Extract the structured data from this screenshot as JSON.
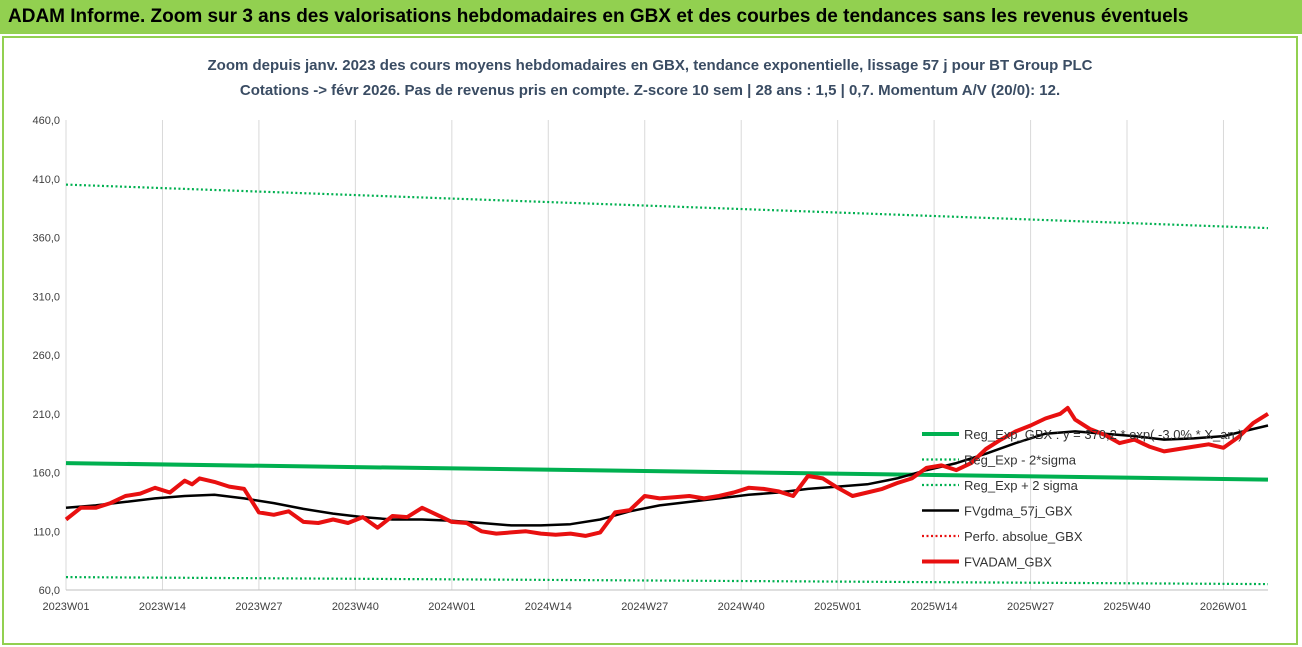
{
  "banner": {
    "title": "ADAM Informe. Zoom sur 3 ans des valorisations hebdomadaires en GBX et des courbes de tendances sans les revenus éventuels"
  },
  "chart_data": {
    "type": "line",
    "title_line1": "Zoom depuis janv. 2023 des cours moyens hebdomadaires en GBX, tendance exponentielle, lissage 57 j pour BT Group PLC",
    "title_line2": "Cotations -> févr 2026.  Pas de revenus pris en compte. Z-score 10 sem | 28 ans : 1,5 | 0,7. Momentum A/V (20/0): 12.",
    "xlabel": "",
    "ylabel": "",
    "ylim": [
      60,
      460
    ],
    "yticks": [
      "460,0",
      "410,0",
      "360,0",
      "310,0",
      "260,0",
      "210,0",
      "160,0",
      "110,0",
      "60,0"
    ],
    "ytick_values": [
      460,
      410,
      360,
      310,
      260,
      210,
      160,
      110,
      60
    ],
    "x_range": [
      0,
      162
    ],
    "xticks": [
      "2023W01",
      "2023W14",
      "2023W27",
      "2023W40",
      "2024W01",
      "2024W14",
      "2024W27",
      "2024W40",
      "2025W01",
      "2025W14",
      "2025W27",
      "2025W40",
      "2026W01"
    ],
    "xtick_positions": [
      0,
      13,
      26,
      39,
      52,
      65,
      78,
      91,
      104,
      117,
      130,
      143,
      156
    ],
    "grid": "vertical",
    "legend_position": "right",
    "colors": {
      "green": "#00b050",
      "black": "#000000",
      "red": "#e81010",
      "banner": "#92d050"
    },
    "series": [
      {
        "name": "Reg_Exp_GBX : y = 370,2 * exp( -3,0% * X_an )",
        "style": "solid-thick",
        "color": "#00b050",
        "x": [
          0,
          162
        ],
        "y": [
          168,
          154
        ]
      },
      {
        "name": "Reg_Exp - 2*sigma",
        "style": "dotted",
        "color": "#00b050",
        "x": [
          0,
          162
        ],
        "y": [
          71,
          65
        ]
      },
      {
        "name": "Reg_Exp + 2 sigma",
        "style": "dotted",
        "color": "#00b050",
        "x": [
          0,
          162
        ],
        "y": [
          405,
          368
        ]
      },
      {
        "name": "FVgdma_57j_GBX",
        "style": "solid",
        "color": "#000000",
        "x": [
          0,
          4,
          8,
          12,
          16,
          20,
          24,
          28,
          32,
          36,
          40,
          44,
          48,
          52,
          56,
          60,
          64,
          68,
          72,
          76,
          80,
          84,
          88,
          92,
          96,
          100,
          104,
          108,
          112,
          116,
          120,
          124,
          128,
          132,
          136,
          140,
          144,
          148,
          152,
          156,
          160,
          162
        ],
        "y": [
          130,
          132,
          135,
          138,
          140,
          141,
          138,
          134,
          129,
          125,
          122,
          120,
          120,
          119,
          117,
          115,
          115,
          116,
          120,
          127,
          132,
          135,
          138,
          141,
          143,
          146,
          148,
          150,
          155,
          162,
          168,
          176,
          185,
          193,
          195,
          193,
          191,
          188,
          189,
          191,
          197,
          200
        ]
      },
      {
        "name": "Perfo. absolue_GBX",
        "style": "dotted",
        "color": "#e81010",
        "x": [],
        "y": []
      },
      {
        "name": "FVADAM_GBX",
        "style": "solid-thick",
        "color": "#e81010",
        "x": [
          0,
          2,
          4,
          6,
          8,
          10,
          12,
          14,
          16,
          17,
          18,
          20,
          22,
          24,
          26,
          28,
          30,
          32,
          34,
          36,
          38,
          40,
          42,
          44,
          46,
          48,
          50,
          52,
          54,
          56,
          58,
          60,
          62,
          64,
          66,
          68,
          70,
          72,
          74,
          76,
          78,
          80,
          82,
          84,
          86,
          88,
          90,
          92,
          94,
          96,
          98,
          100,
          102,
          104,
          106,
          108,
          110,
          112,
          114,
          116,
          118,
          120,
          122,
          124,
          126,
          128,
          130,
          132,
          134,
          135,
          136,
          138,
          140,
          142,
          144,
          146,
          148,
          150,
          152,
          154,
          156,
          158,
          160,
          162
        ],
        "y": [
          120,
          130,
          130,
          134,
          140,
          142,
          147,
          143,
          153,
          150,
          155,
          152,
          148,
          146,
          126,
          124,
          127,
          118,
          117,
          120,
          117,
          122,
          113,
          123,
          122,
          130,
          124,
          118,
          117,
          110,
          108,
          109,
          110,
          108,
          107,
          108,
          106,
          109,
          126,
          128,
          140,
          138,
          139,
          140,
          138,
          140,
          143,
          147,
          146,
          144,
          140,
          157,
          155,
          147,
          140,
          143,
          146,
          151,
          155,
          164,
          166,
          162,
          168,
          180,
          188,
          195,
          200,
          206,
          210,
          215,
          205,
          197,
          192,
          185,
          188,
          182,
          178,
          180,
          182,
          184,
          181,
          190,
          202,
          210
        ]
      }
    ]
  }
}
